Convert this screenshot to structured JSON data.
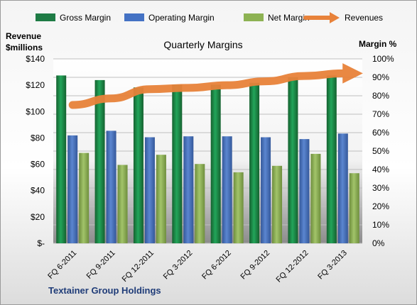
{
  "chart_data": {
    "type": "bar",
    "title": "Quarterly Margins",
    "company": "Textainer Group Holdings",
    "y_left_label_line1": "Revenue",
    "y_left_label_line2": "$millions",
    "y_right_label": "Margin %",
    "categories": [
      "FQ 6-2011",
      "FQ 9-2011",
      "FQ 12-2011",
      "FQ 3-2012",
      "FQ 6-2012",
      "FQ 9-2012",
      "FQ 12-2012",
      "FQ 3-2013"
    ],
    "y_left_ticks": [
      "$-",
      "$20",
      "$40",
      "$60",
      "$80",
      "$100",
      "$120",
      "$140"
    ],
    "y_right_ticks": [
      "0%",
      "10%",
      "20%",
      "30%",
      "40%",
      "50%",
      "60%",
      "70%",
      "80%",
      "90%",
      "100%"
    ],
    "ylim_left": [
      0,
      140
    ],
    "ylim_right": [
      0,
      100
    ],
    "legend_position": "top",
    "grid": true,
    "series": [
      {
        "name": "Gross Margin",
        "axis": "right",
        "kind": "bar",
        "color": "#1E7B45",
        "values": [
          91,
          88.5,
          84.5,
          86,
          86,
          87,
          90,
          91
        ]
      },
      {
        "name": "Operating Margin",
        "axis": "right",
        "kind": "bar",
        "color": "#4472C4",
        "values": [
          58.5,
          61,
          57.5,
          58,
          58,
          57.5,
          56.5,
          59.5
        ]
      },
      {
        "name": "Net Margin",
        "axis": "right",
        "kind": "bar",
        "color": "#8DB253",
        "values": [
          49,
          42.5,
          48,
          43,
          38.5,
          42,
          48.5,
          38
        ]
      },
      {
        "name": "Revenues",
        "axis": "left",
        "kind": "line",
        "color": "#E8823A",
        "values": [
          105,
          110,
          117,
          118,
          120,
          123,
          127,
          129
        ]
      }
    ]
  }
}
